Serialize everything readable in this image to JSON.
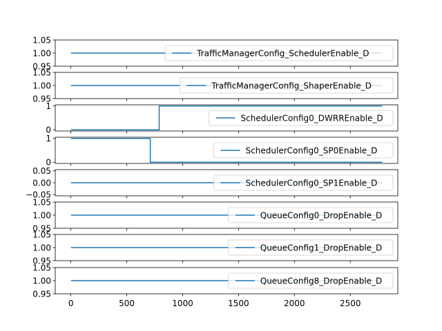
{
  "chart_data": [
    {
      "type": "line",
      "ylim": [
        0.95,
        1.05
      ],
      "yticks": [
        0.95,
        1.0,
        1.05
      ],
      "ytick_labels": [
        "0.95",
        "1.00",
        "1.05"
      ],
      "legend_position": "right",
      "series": [
        {
          "name": "TrafficManagerConfig_SchedulerEnable_D",
          "x": [
            0,
            2785
          ],
          "y": [
            1,
            1
          ],
          "step": false
        }
      ]
    },
    {
      "type": "line",
      "ylim": [
        0.95,
        1.05
      ],
      "yticks": [
        0.95,
        1.0,
        1.05
      ],
      "ytick_labels": [
        "0.95",
        "1.00",
        "1.05"
      ],
      "legend_position": "right",
      "series": [
        {
          "name": "TrafficManagerConfig_ShaperEnable_D",
          "x": [
            0,
            2785
          ],
          "y": [
            1,
            1
          ],
          "step": false
        }
      ]
    },
    {
      "type": "line",
      "ylim": [
        -0.05,
        1.05
      ],
      "yticks": [
        0,
        1
      ],
      "ytick_labels": [
        "0",
        "1"
      ],
      "legend_position": "right",
      "series": [
        {
          "name": "SchedulerConfig0_DWRREnable_D",
          "x": [
            0,
            790,
            2785
          ],
          "y": [
            0,
            1,
            1
          ],
          "step": true
        }
      ]
    },
    {
      "type": "line",
      "ylim": [
        -0.05,
        1.05
      ],
      "yticks": [
        0,
        1
      ],
      "ytick_labels": [
        "0",
        "1"
      ],
      "legend_position": "right",
      "series": [
        {
          "name": "SchedulerConfig0_SP0Enable_D",
          "x": [
            0,
            710,
            2785
          ],
          "y": [
            1,
            0,
            0
          ],
          "step": true
        }
      ]
    },
    {
      "type": "line",
      "ylim": [
        -0.055,
        0.055
      ],
      "yticks": [
        -0.05,
        0.0,
        0.05
      ],
      "ytick_labels": [
        "−0.05",
        "0.00",
        "0.05"
      ],
      "legend_position": "right",
      "series": [
        {
          "name": "SchedulerConfig0_SP1Enable_D",
          "x": [
            0,
            2785
          ],
          "y": [
            0,
            0
          ],
          "step": false
        }
      ]
    },
    {
      "type": "line",
      "ylim": [
        0.95,
        1.05
      ],
      "yticks": [
        0.95,
        1.0,
        1.05
      ],
      "ytick_labels": [
        "0.95",
        "1.00",
        "1.05"
      ],
      "legend_position": "right",
      "series": [
        {
          "name": "QueueConfig0_DropEnable_D",
          "x": [
            0,
            2785
          ],
          "y": [
            1,
            1
          ],
          "step": false
        }
      ]
    },
    {
      "type": "line",
      "ylim": [
        0.95,
        1.05
      ],
      "yticks": [
        0.95,
        1.0,
        1.05
      ],
      "ytick_labels": [
        "0.95",
        "1.00",
        "1.05"
      ],
      "legend_position": "right",
      "series": [
        {
          "name": "QueueConfig1_DropEnable_D",
          "x": [
            0,
            2785
          ],
          "y": [
            1,
            1
          ],
          "step": false
        }
      ]
    },
    {
      "type": "line",
      "ylim": [
        0.95,
        1.05
      ],
      "yticks": [
        0.95,
        1.0,
        1.05
      ],
      "ytick_labels": [
        "0.95",
        "1.00",
        "1.05"
      ],
      "legend_position": "right",
      "series": [
        {
          "name": "QueueConfig8_DropEnable_D",
          "x": [
            0,
            2785
          ],
          "y": [
            1,
            1
          ],
          "step": false
        }
      ]
    }
  ],
  "x_axis": {
    "xlim": [
      -140,
      2925
    ],
    "xticks": [
      0,
      500,
      1000,
      1500,
      2000,
      2500
    ],
    "xtick_labels": [
      "0",
      "500",
      "1000",
      "1500",
      "2000",
      "2500"
    ]
  },
  "colors": {
    "line": "#1f77b4",
    "axis": "#000000",
    "legend_border": "#cccccc"
  }
}
